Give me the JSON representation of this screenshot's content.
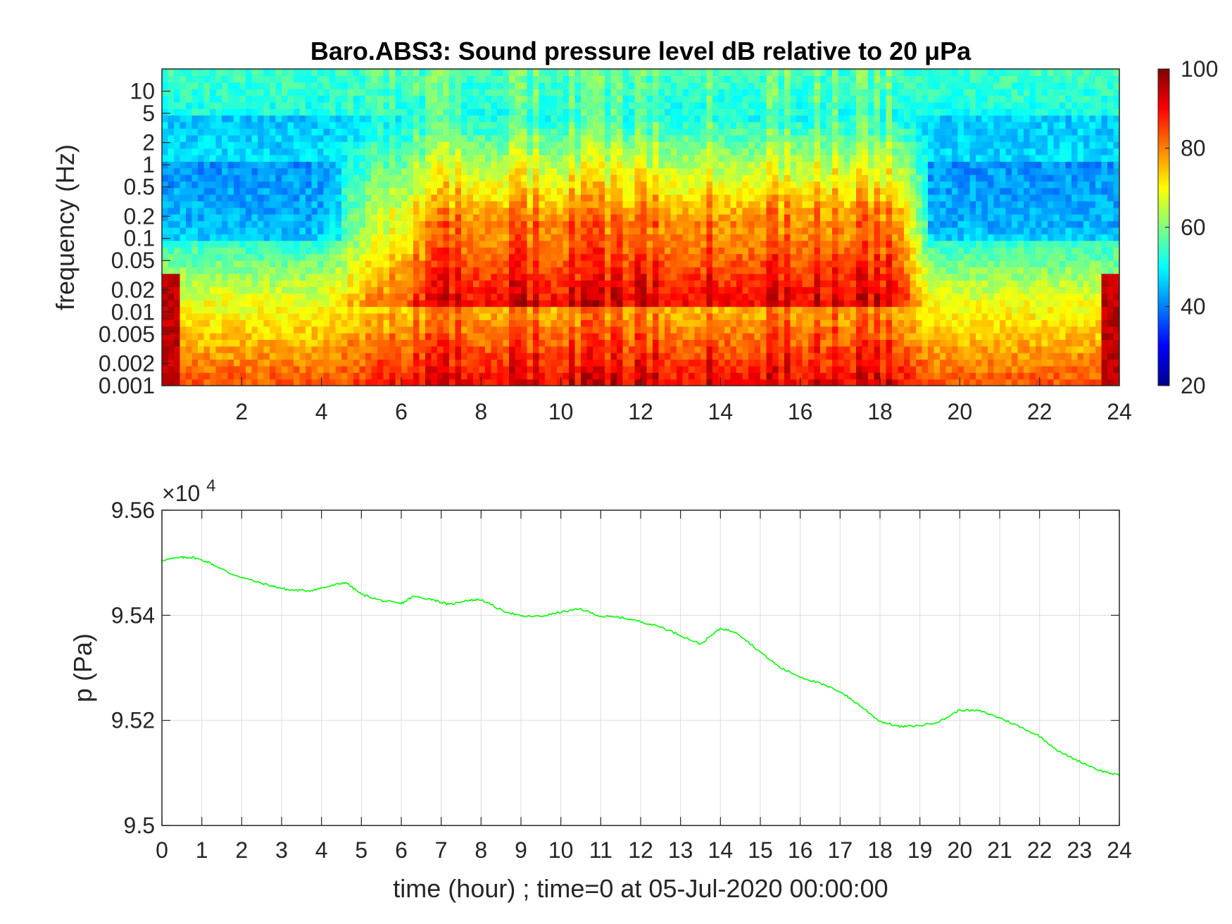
{
  "spectrogram": {
    "title": "Baro.ABS3: Sound pressure level dB relative to 20 μPa",
    "ylabel": "frequency (Hz)",
    "xtick_labels": [
      "2",
      "4",
      "6",
      "8",
      "10",
      "12",
      "14",
      "16",
      "18",
      "20",
      "22",
      "24"
    ],
    "ytick_labels": [
      "10",
      "5",
      "2",
      "1",
      "0.5",
      "0.2",
      "0.1",
      "0.05",
      "0.02",
      "0.01",
      "0.005",
      "0.002",
      "0.001"
    ],
    "colorbar_tick_labels": [
      "100",
      "80",
      "60",
      "40",
      "20"
    ]
  },
  "pressure": {
    "ylabel": "p (Pa)",
    "xlabel": "time (hour) ; time=0 at 05-Jul-2020 00:00:00",
    "exponent_label": "×10",
    "exponent_power": "4",
    "xtick_labels": [
      "0",
      "1",
      "2",
      "3",
      "4",
      "5",
      "6",
      "7",
      "8",
      "9",
      "10",
      "11",
      "12",
      "13",
      "14",
      "15",
      "16",
      "17",
      "18",
      "19",
      "20",
      "21",
      "22",
      "23",
      "24"
    ],
    "ytick_labels": [
      "9.56",
      "9.54",
      "9.52",
      "9.5"
    ],
    "line_color": "#00ff00"
  },
  "chart_data": [
    {
      "type": "heatmap",
      "title": "Baro.ABS3: Sound pressure level dB relative to 20 μPa",
      "xlabel": "",
      "ylabel": "frequency (Hz)",
      "xlim": [
        0,
        24
      ],
      "ylim_hz": [
        0.001,
        20
      ],
      "y_scale": "log",
      "color_range_db": [
        20,
        100
      ],
      "colormap": "jet",
      "colorbar": true,
      "xticks": [
        2,
        4,
        6,
        8,
        10,
        12,
        14,
        16,
        18,
        20,
        22,
        24
      ],
      "yticks_hz": [
        10,
        5,
        2,
        1,
        0.5,
        0.2,
        0.1,
        0.05,
        0.02,
        0.01,
        0.005,
        0.002,
        0.001
      ],
      "colorbar_ticks": [
        100,
        80,
        60,
        40,
        20
      ]
    },
    {
      "type": "line",
      "xlabel": "time (hour) ; time=0 at 05-Jul-2020 00:00:00",
      "ylabel": "p (Pa)",
      "xlim": [
        0,
        24
      ],
      "ylim": [
        95000,
        95600
      ],
      "grid": true,
      "series": [
        {
          "color": "#00ff00",
          "x": [
            0,
            0.5,
            0.8,
            1.2,
            1.7,
            2.3,
            2.8,
            3.2,
            3.7,
            4.2,
            4.6,
            5.0,
            5.5,
            6.0,
            6.3,
            6.8,
            7.2,
            7.6,
            8.0,
            8.5,
            9.0,
            9.5,
            10.0,
            10.5,
            11.0,
            11.5,
            12.0,
            12.5,
            13.0,
            13.5,
            14.0,
            14.4,
            15.0,
            15.5,
            16.0,
            16.5,
            17.0,
            17.5,
            18.0,
            18.5,
            19.0,
            19.5,
            20.0,
            20.5,
            21.0,
            21.5,
            22.0,
            22.5,
            23.0,
            23.5,
            24.0
          ],
          "values": [
            95505,
            95510,
            95510,
            95500,
            95480,
            95465,
            95455,
            95448,
            95447,
            95455,
            95463,
            95440,
            95428,
            95422,
            95436,
            95430,
            95420,
            95428,
            95430,
            95410,
            95398,
            95398,
            95406,
            95412,
            95398,
            95396,
            95388,
            95378,
            95362,
            95345,
            95375,
            95368,
            95330,
            95300,
            95283,
            95270,
            95255,
            95228,
            95198,
            95188,
            95190,
            95198,
            95220,
            95218,
            95205,
            95188,
            95170,
            95140,
            95122,
            95105,
            95095
          ]
        }
      ]
    }
  ]
}
